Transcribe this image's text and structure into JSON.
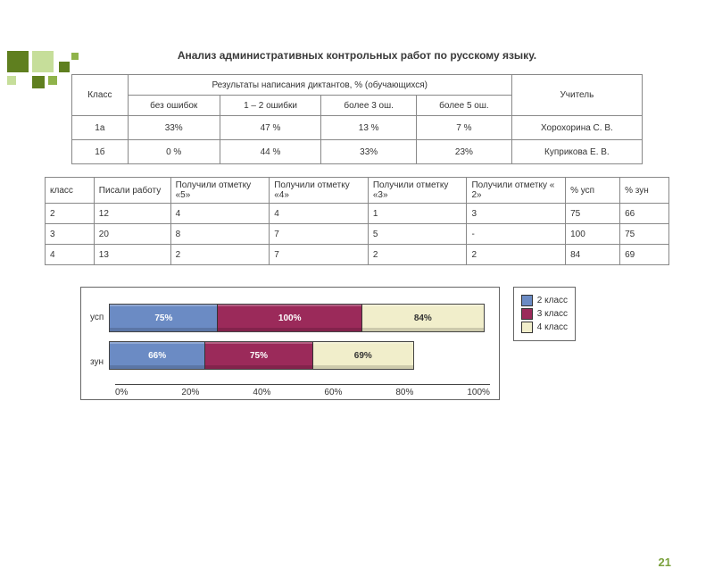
{
  "page_number": "21",
  "title": "Анализ административных контрольных работ по русскому языку.",
  "decoration": {
    "colors": {
      "dark": "#5f7f1f",
      "mid": "#8fb34a",
      "light": "#c6de9a"
    }
  },
  "table1": {
    "header_class": "Класс",
    "header_group": "Результаты написания диктантов, % (обучающихся)",
    "header_teacher": "Учитель",
    "sub": [
      "без ошибок",
      "1 – 2 ошибки",
      "более 3 ош.",
      "более 5 ош."
    ],
    "rows": [
      {
        "klass": "1а",
        "c1": "33%",
        "c2": "47 %",
        "c3": "13 %",
        "c4": "7 %",
        "teacher": "Хорохорина С. В."
      },
      {
        "klass": "1б",
        "c1": "0 %",
        "c2": "44 %",
        "c3": "33%",
        "c4": "23%",
        "teacher": "Куприкова Е. В."
      }
    ]
  },
  "table2": {
    "headers": [
      "класс",
      "Писали работу",
      "Получили отметку «5»",
      "Получили отметку «4»",
      "Получили отметку «3»",
      "Получили отметку « 2»",
      "% усп",
      "% зун"
    ],
    "rows": [
      [
        "2",
        "12",
        "4",
        "4",
        "1",
        "3",
        "75",
        "66"
      ],
      [
        "3",
        "20",
        "8",
        "7",
        "5",
        "-",
        "100",
        "75"
      ],
      [
        "4",
        "13",
        "2",
        "7",
        "2",
        "2",
        "84",
        "69"
      ]
    ]
  },
  "chart": {
    "type": "stacked-bar-horizontal",
    "ylabels": [
      "усп",
      "зун"
    ],
    "series": [
      "2 класс",
      "3 класс",
      "4 класс"
    ],
    "colors": [
      "#6b8bc4",
      "#9b2a5a",
      "#f1eecb"
    ],
    "text_colors": [
      "#ffffff",
      "#ffffff",
      "#333333"
    ],
    "rows": [
      {
        "label": "усп",
        "values": [
          75,
          100,
          84
        ],
        "labels": [
          "75%",
          "100%",
          "84%"
        ]
      },
      {
        "label": "зун",
        "values": [
          66,
          75,
          69
        ],
        "labels": [
          "66%",
          "75%",
          "69%"
        ]
      }
    ],
    "xticks": [
      "0%",
      "20%",
      "40%",
      "60%",
      "80%",
      "100%"
    ],
    "xlim_sum": 260,
    "plot_border": "#666666",
    "background": "#ffffff"
  }
}
